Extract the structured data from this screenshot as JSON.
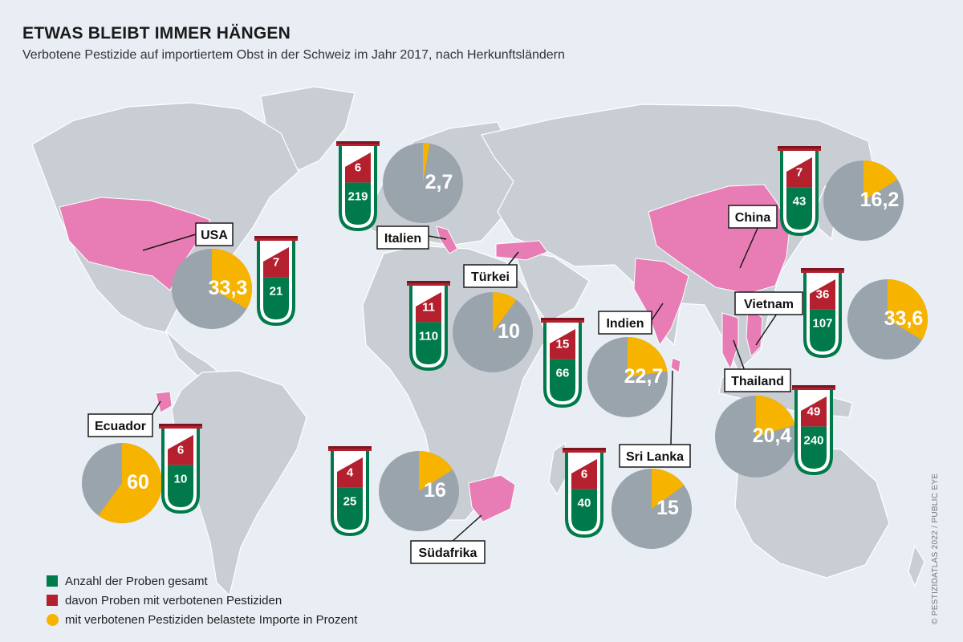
{
  "title": "ETWAS BLEIBT IMMER HÄNGEN",
  "subtitle": "Verbotene Pestizide auf importiertem Obst in der Schweiz im Jahr 2017, nach Herkunftsländern",
  "legend": {
    "total": "Anzahl der Proben gesamt",
    "banned": "davon Proben mit verbotenen Pestiziden",
    "percent": "mit verbotenen Pestiziden belastete Importe in Prozent"
  },
  "credit": "© PESTIZIDATLAS 2022 / PUBLIC EYE",
  "colors": {
    "green": "#007a4a",
    "red": "#b5202e",
    "yellow": "#f6b300",
    "pie_grey": "#9aa4ad",
    "highlight": "#e87db5",
    "land": "#c9ced4",
    "ocean": "#e8eef4"
  },
  "chart_data": {
    "type": "map",
    "columns": [
      "country",
      "samples_total",
      "samples_banned",
      "percent_contaminated"
    ],
    "series": [
      {
        "country": "USA",
        "total": 21,
        "banned": 7,
        "percent": 33.3,
        "percent_label": "33,3"
      },
      {
        "country": "Italien",
        "total": 219,
        "banned": 6,
        "percent": 2.7,
        "percent_label": "2,7"
      },
      {
        "country": "Türkei",
        "total": 110,
        "banned": 11,
        "percent": 10,
        "percent_label": "10"
      },
      {
        "country": "Indien",
        "total": 66,
        "banned": 15,
        "percent": 22.7,
        "percent_label": "22,7"
      },
      {
        "country": "China",
        "total": 43,
        "banned": 7,
        "percent": 16.2,
        "percent_label": "16,2"
      },
      {
        "country": "Vietnam",
        "total": 107,
        "banned": 36,
        "percent": 33.6,
        "percent_label": "33,6"
      },
      {
        "country": "Thailand",
        "total": 240,
        "banned": 49,
        "percent": 20.4,
        "percent_label": "20,4"
      },
      {
        "country": "Ecuador",
        "total": 10,
        "banned": 6,
        "percent": 60,
        "percent_label": "60"
      },
      {
        "country": "Südafrika",
        "total": 25,
        "banned": 4,
        "percent": 16,
        "percent_label": "16"
      },
      {
        "country": "Sri Lanka",
        "total": 40,
        "banned": 6,
        "percent": 15,
        "percent_label": "15"
      }
    ]
  }
}
